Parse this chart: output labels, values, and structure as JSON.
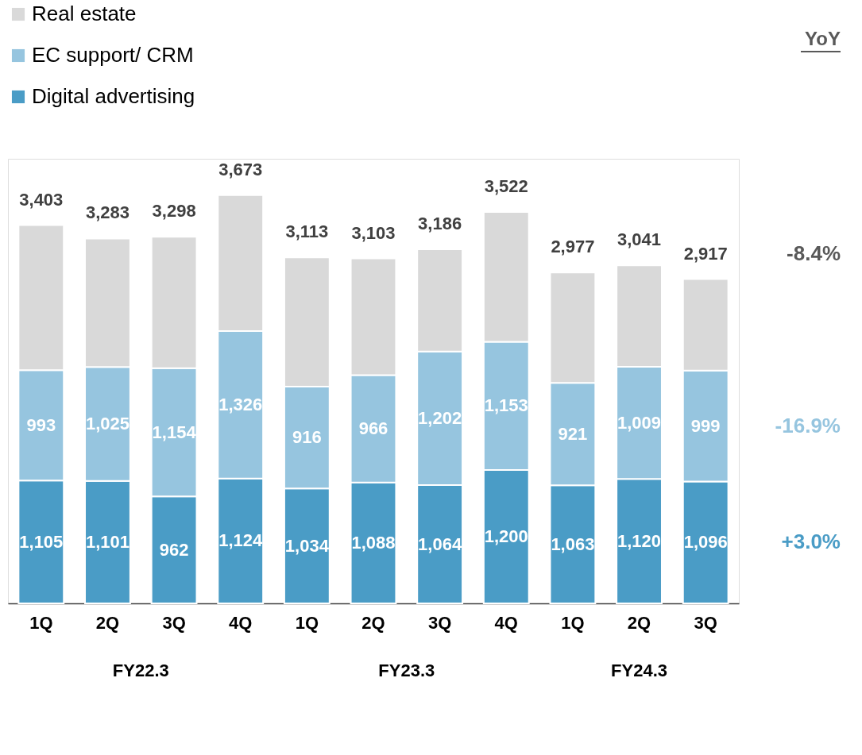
{
  "chart_data": {
    "type": "bar",
    "stacked": true,
    "legend": "top left",
    "categories": [
      "1Q",
      "2Q",
      "3Q",
      "4Q",
      "1Q",
      "2Q",
      "3Q",
      "4Q",
      "1Q",
      "2Q",
      "3Q"
    ],
    "series": [
      {
        "name": "Digital advertising",
        "color": "#4a9cc6",
        "values": [
          1105,
          1101,
          962,
          1124,
          1034,
          1088,
          1064,
          1200,
          1063,
          1120,
          1096
        ],
        "value_labels": [
          "1,105",
          "1,101",
          "962",
          "1,124",
          "1,034",
          "1,088",
          "1,064",
          "1,200",
          "1,063",
          "1,120",
          "1,096"
        ]
      },
      {
        "name": "EC support/ CRM",
        "color": "#96c5df",
        "values": [
          993,
          1025,
          1154,
          1326,
          916,
          966,
          1202,
          1153,
          921,
          1009,
          999
        ],
        "value_labels": [
          "993",
          "1,025",
          "1,154",
          "1,326",
          "916",
          "966",
          "1,202",
          "1,153",
          "921",
          "1,009",
          "999"
        ]
      },
      {
        "name": "Real estate",
        "color": "#d9d9d9",
        "values": [
          1305,
          1157,
          1182,
          1223,
          1163,
          1049,
          920,
          1169,
          993,
          912,
          822
        ]
      }
    ],
    "totals": [
      "3,403",
      "3,283",
      "3,298",
      "3,673",
      "3,113",
      "3,103",
      "3,186",
      "3,522",
      "2,977",
      "3,041",
      "2,917"
    ],
    "annotations": [
      "YoY",
      "+3.0%",
      "-16.9%",
      "-8.4%",
      "FY22.3",
      "FY23.3",
      "FY24.3"
    ]
  }
}
